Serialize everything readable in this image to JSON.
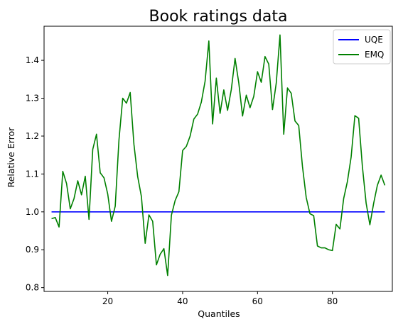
{
  "chart_data": {
    "type": "line",
    "title": "Book ratings data",
    "xlabel": "Quantiles",
    "ylabel": "Relative Error",
    "xlim": [
      3,
      96
    ],
    "ylim": [
      0.79,
      1.49
    ],
    "xticks": [
      20,
      40,
      60,
      80
    ],
    "yticks": [
      0.8,
      0.9,
      1.0,
      1.1,
      1.2,
      1.3,
      1.4
    ],
    "grid": false,
    "legend": "top-right",
    "series": [
      {
        "name": "UQE",
        "color": "#0000ff",
        "x": [
          5,
          94
        ],
        "y": [
          1.0,
          1.0
        ]
      },
      {
        "name": "EMQ",
        "color": "#008000",
        "x": [
          5,
          6,
          7,
          8,
          9,
          10,
          11,
          12,
          13,
          14,
          15,
          16,
          17,
          18,
          19,
          20,
          21,
          22,
          23,
          24,
          25,
          26,
          27,
          28,
          29,
          30,
          31,
          32,
          33,
          34,
          35,
          36,
          37,
          38,
          39,
          40,
          41,
          42,
          43,
          44,
          45,
          46,
          47,
          48,
          49,
          50,
          51,
          52,
          53,
          54,
          55,
          56,
          57,
          58,
          59,
          60,
          61,
          62,
          63,
          64,
          65,
          66,
          67,
          68,
          69,
          70,
          71,
          72,
          73,
          74,
          75,
          76,
          77,
          78,
          79,
          80,
          81,
          82,
          83,
          84,
          85,
          86,
          87,
          88,
          89,
          90,
          91,
          92,
          93,
          94
        ],
        "y": [
          0.982,
          0.985,
          0.96,
          1.107,
          1.075,
          1.008,
          1.035,
          1.082,
          1.045,
          1.094,
          0.98,
          1.165,
          1.205,
          1.103,
          1.09,
          1.047,
          0.975,
          1.015,
          1.19,
          1.3,
          1.287,
          1.315,
          1.178,
          1.093,
          1.04,
          0.917,
          0.992,
          0.975,
          0.86,
          0.888,
          0.903,
          0.832,
          0.991,
          1.03,
          1.053,
          1.162,
          1.173,
          1.2,
          1.245,
          1.258,
          1.29,
          1.345,
          1.451,
          1.232,
          1.353,
          1.26,
          1.322,
          1.268,
          1.323,
          1.405,
          1.34,
          1.253,
          1.308,
          1.275,
          1.305,
          1.37,
          1.342,
          1.41,
          1.39,
          1.27,
          1.34,
          1.467,
          1.205,
          1.327,
          1.313,
          1.24,
          1.228,
          1.12,
          1.038,
          0.995,
          0.99,
          0.91,
          0.905,
          0.905,
          0.9,
          0.898,
          0.967,
          0.955,
          1.035,
          1.08,
          1.145,
          1.254,
          1.247,
          1.12,
          1.023,
          0.966,
          1.022,
          1.07,
          1.097,
          1.07
        ]
      }
    ]
  }
}
